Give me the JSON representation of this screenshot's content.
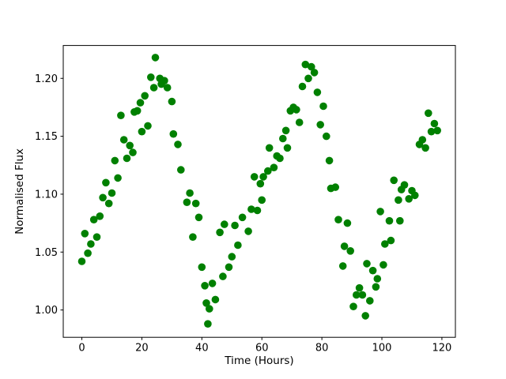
{
  "figure": {
    "background": "#ffffff",
    "frame_color": "#000000"
  },
  "chart_data": {
    "type": "scatter",
    "title": "",
    "xlabel": "Time (Hours)",
    "ylabel": "Normalised Flux",
    "marker": {
      "shape": "circle",
      "color": "#008000",
      "radius_px": 4.8
    },
    "grid": false,
    "legend": null,
    "xlim": [
      -6.2,
      124.5
    ],
    "ylim": [
      0.9764,
      1.2284
    ],
    "xtick_values": [
      0,
      20,
      40,
      60,
      80,
      100,
      120
    ],
    "xtick_labels": [
      "0",
      "20",
      "40",
      "60",
      "80",
      "100",
      "120"
    ],
    "ytick_values": [
      1.0,
      1.05,
      1.1,
      1.15,
      1.2
    ],
    "ytick_labels": [
      "1.00",
      "1.05",
      "1.10",
      "1.15",
      "1.20"
    ],
    "x": [
      0,
      1,
      2,
      3,
      4,
      5,
      6,
      7,
      8,
      9,
      10,
      11,
      12,
      13,
      14,
      15,
      16,
      17,
      17.5,
      18.5,
      19.5,
      20,
      21,
      22,
      23,
      24,
      24.5,
      26,
      26.5,
      27.5,
      28.5,
      30,
      30.5,
      32,
      33,
      35,
      36,
      37,
      38,
      39,
      40,
      41,
      41.5,
      42,
      42.5,
      43.5,
      44.5,
      46,
      47,
      47.5,
      49,
      50,
      51,
      52,
      53.5,
      55.5,
      56.5,
      57.5,
      58.5,
      59.5,
      60,
      60.5,
      62,
      62.5,
      64,
      65,
      66,
      67,
      68,
      68.5,
      69.5,
      70.5,
      71.5,
      72.5,
      73.5,
      74.5,
      75.5,
      76.5,
      77.5,
      78.5,
      79.5,
      80.5,
      81.5,
      82.5,
      83,
      84.5,
      85.5,
      87,
      87.5,
      88.5,
      89.5,
      90.5,
      91.5,
      92.5,
      93.5,
      94.5,
      95,
      96,
      97,
      98,
      98.5,
      99.5,
      100.5,
      101,
      102.5,
      103,
      104,
      105.5,
      106,
      106.5,
      107.5,
      109,
      110,
      111,
      112.5,
      113.5,
      114.5,
      115.5,
      116.5,
      117.5,
      118.5
    ],
    "y": [
      1.042,
      1.066,
      1.049,
      1.057,
      1.078,
      1.063,
      1.081,
      1.097,
      1.11,
      1.092,
      1.101,
      1.129,
      1.114,
      1.168,
      1.147,
      1.131,
      1.142,
      1.136,
      1.171,
      1.172,
      1.179,
      1.154,
      1.185,
      1.159,
      1.201,
      1.192,
      1.218,
      1.2,
      1.195,
      1.198,
      1.192,
      1.18,
      1.152,
      1.143,
      1.121,
      1.093,
      1.101,
      1.063,
      1.092,
      1.08,
      1.037,
      1.021,
      1.006,
      0.988,
      1.001,
      1.023,
      1.009,
      1.067,
      1.029,
      1.074,
      1.037,
      1.046,
      1.073,
      1.056,
      1.08,
      1.068,
      1.087,
      1.115,
      1.086,
      1.109,
      1.095,
      1.115,
      1.12,
      1.14,
      1.123,
      1.133,
      1.131,
      1.148,
      1.155,
      1.14,
      1.172,
      1.175,
      1.173,
      1.162,
      1.193,
      1.212,
      1.2,
      1.21,
      1.205,
      1.188,
      1.16,
      1.176,
      1.15,
      1.129,
      1.105,
      1.106,
      1.078,
      1.038,
      1.055,
      1.075,
      1.051,
      1.003,
      1.013,
      1.019,
      1.013,
      0.995,
      1.04,
      1.008,
      1.034,
      1.02,
      1.027,
      1.085,
      1.039,
      1.057,
      1.077,
      1.06,
      1.112,
      1.095,
      1.077,
      1.104,
      1.108,
      1.096,
      1.103,
      1.099,
      1.143,
      1.147,
      1.14,
      1.17,
      1.154,
      1.161,
      1.155
    ]
  }
}
